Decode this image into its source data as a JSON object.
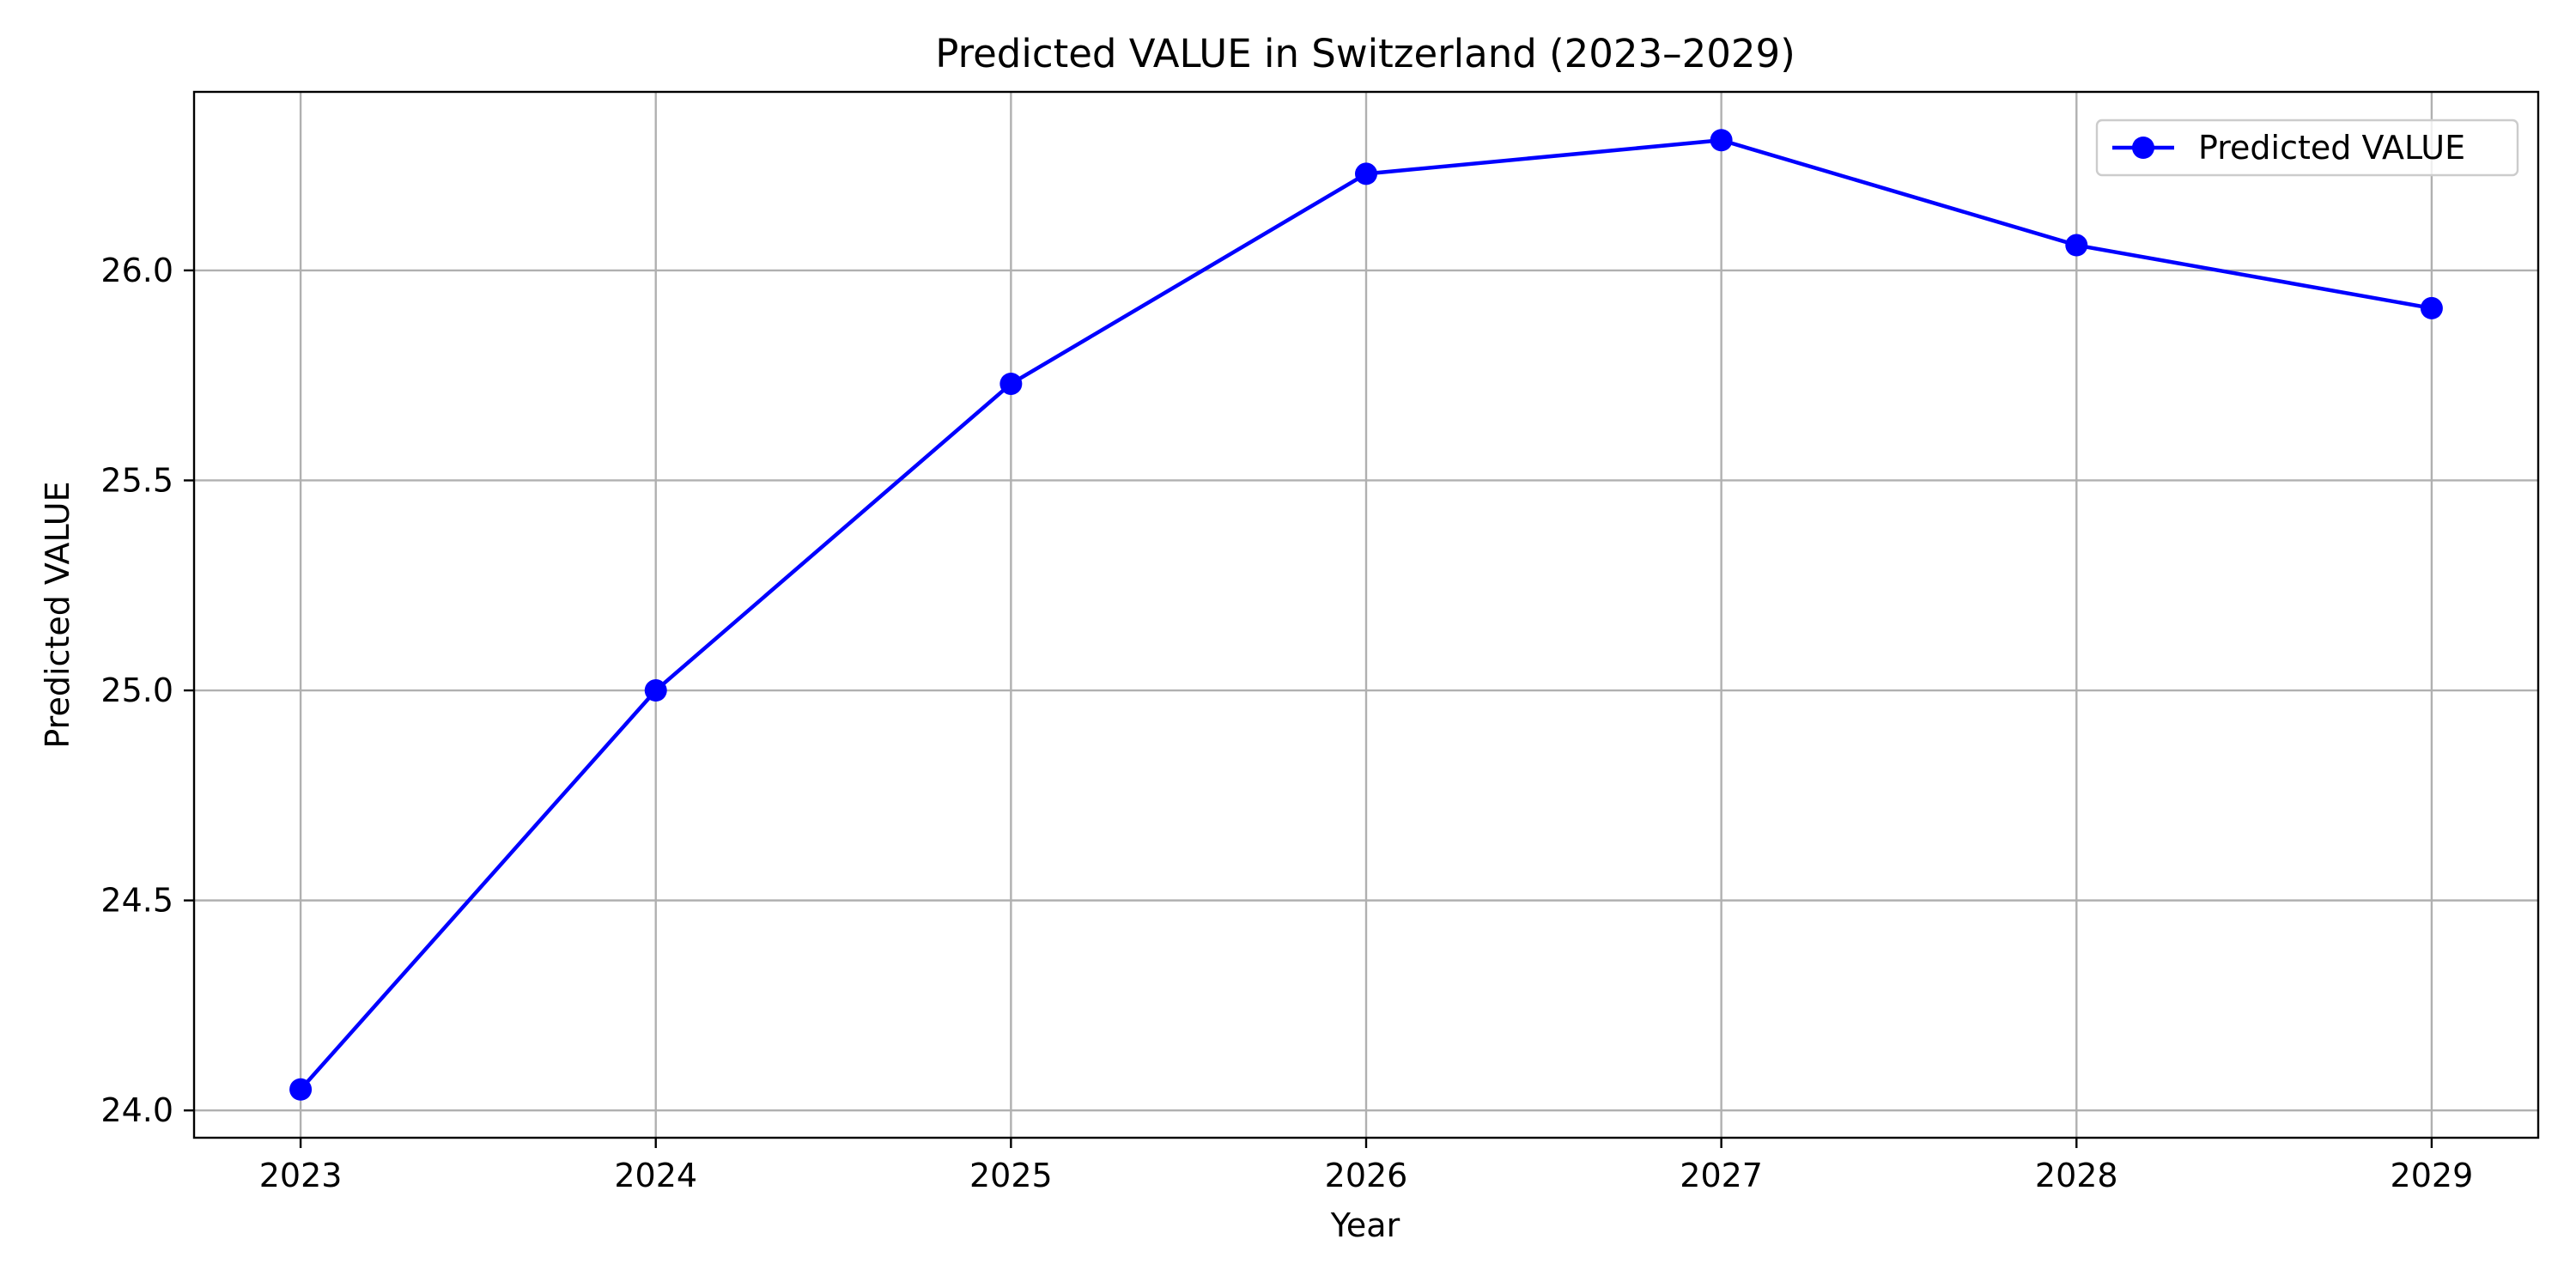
{
  "chart_data": {
    "type": "line",
    "title": "Predicted VALUE in Switzerland (2023–2029)",
    "xlabel": "Year",
    "ylabel": "Predicted VALUE",
    "x": [
      2023,
      2024,
      2025,
      2026,
      2027,
      2028,
      2029
    ],
    "x_tick_labels": [
      "2023",
      "2024",
      "2025",
      "2026",
      "2027",
      "2028",
      "2029"
    ],
    "xlim": [
      2022.7,
      2029.3
    ],
    "ylim": [
      23.935,
      26.425
    ],
    "y_ticks": [
      24.0,
      24.5,
      25.0,
      25.5,
      26.0
    ],
    "y_tick_labels": [
      "24.0",
      "24.5",
      "25.0",
      "25.5",
      "26.0"
    ],
    "grid": true,
    "legend_position": "top-right",
    "series": [
      {
        "name": "Predicted VALUE",
        "color": "#0000ff",
        "marker": "circle",
        "values": [
          24.05,
          25.0,
          25.73,
          26.23,
          26.31,
          26.06,
          25.91
        ]
      }
    ]
  }
}
